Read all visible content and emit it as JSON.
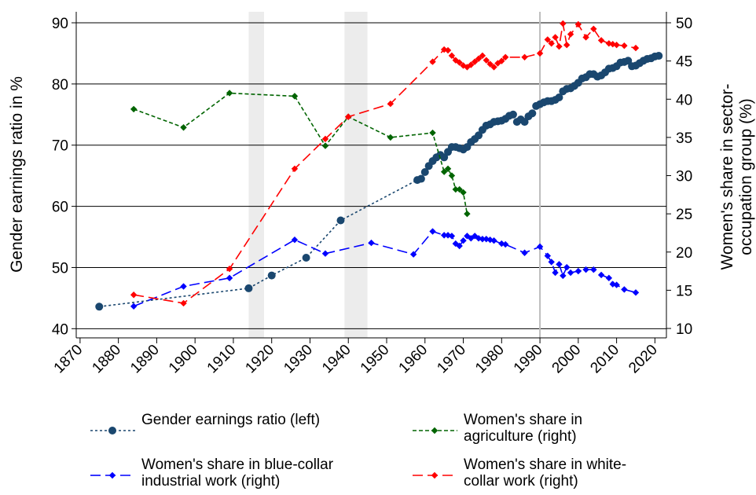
{
  "chart_data": {
    "type": "line",
    "y_label": "Gender earnings ratio in %",
    "y2_label": "Women's share in sector-occupation group (%)",
    "xlim": [
      1869,
      2023
    ],
    "xticks": [
      1870,
      1880,
      1890,
      1900,
      1910,
      1920,
      1930,
      1940,
      1950,
      1960,
      1970,
      1980,
      1990,
      2000,
      2010,
      2020
    ],
    "ylim": [
      38.5,
      91.8
    ],
    "yticks": [
      40,
      50,
      60,
      70,
      80,
      90
    ],
    "y2lim": [
      8.77,
      51.44
    ],
    "y2ticks": [
      10,
      15,
      20,
      25,
      30,
      35,
      40,
      45,
      50
    ],
    "grid": true,
    "shaded_periods": [
      {
        "start": 1914,
        "end": 1918
      },
      {
        "start": 1939,
        "end": 1945
      }
    ],
    "reference_line": 1990,
    "series": [
      {
        "name": "Gender earnings ratio (left)",
        "color": "#1a476f",
        "axis": "y",
        "marker": "circle",
        "dash": "dotted",
        "x": [
          1875,
          1914,
          1920,
          1929,
          1938,
          1958,
          1959,
          1960,
          1961,
          1962,
          1963,
          1964,
          1965,
          1966,
          1967,
          1968,
          1969,
          1970,
          1971,
          1972,
          1973,
          1974,
          1975,
          1976,
          1977,
          1978,
          1979,
          1980,
          1981,
          1982,
          1983,
          1984,
          1985,
          1986,
          1987,
          1988,
          1989,
          1990,
          1991,
          1992,
          1993,
          1994,
          1995,
          1996,
          1997,
          1998,
          1999,
          2000,
          2001,
          2002,
          2003,
          2004,
          2005,
          2006,
          2007,
          2008,
          2009,
          2010,
          2011,
          2012,
          2013,
          2014,
          2015,
          2016,
          2017,
          2018,
          2019,
          2020,
          2021
        ],
        "values": [
          43.6,
          46.6,
          48.7,
          51.6,
          57.7,
          64.3,
          64.5,
          65.6,
          66.6,
          67.4,
          68.0,
          68.4,
          68.0,
          68.9,
          69.7,
          69.7,
          69.5,
          69.3,
          69.7,
          70.5,
          71.0,
          71.6,
          72.5,
          73.2,
          73.4,
          73.8,
          73.9,
          74.0,
          74.3,
          74.8,
          75.0,
          73.8,
          74.2,
          73.8,
          74.7,
          75.2,
          76.4,
          76.7,
          77.0,
          77.2,
          77.2,
          77.4,
          77.8,
          78.8,
          79.2,
          79.3,
          79.7,
          80.2,
          80.9,
          81.1,
          81.6,
          81.6,
          81.2,
          81.4,
          81.9,
          82.5,
          82.6,
          82.9,
          83.5,
          83.6,
          83.8,
          82.9,
          83.0,
          83.4,
          83.8,
          84.1,
          84.2,
          84.5,
          84.6
        ]
      },
      {
        "name": "Women's share in blue-collar industrial work (right)",
        "color": "#0000ff",
        "axis": "y2",
        "marker": "diamond",
        "dash": "long",
        "x": [
          1884,
          1897,
          1909,
          1926,
          1934,
          1946,
          1957,
          1962,
          1965,
          1966,
          1967,
          1968,
          1969,
          1970,
          1971,
          1972,
          1973,
          1974,
          1975,
          1976,
          1977,
          1978,
          1980,
          1981,
          1986,
          1990,
          1992,
          1993,
          1994,
          1995,
          1996,
          1997,
          1998,
          2000,
          2002,
          2004,
          2006,
          2008,
          2009,
          2010,
          2012,
          2015
        ],
        "values": [
          12.9,
          15.5,
          16.6,
          21.6,
          19.8,
          21.2,
          19.7,
          22.7,
          22.2,
          22.2,
          22.1,
          21.1,
          20.8,
          21.5,
          22.1,
          21.8,
          22.1,
          21.8,
          21.7,
          21.7,
          21.6,
          21.5,
          21.1,
          21.0,
          19.9,
          20.7,
          19.5,
          18.7,
          17.3,
          18.4,
          16.9,
          18.0,
          17.3,
          17.5,
          17.7,
          17.7,
          17.0,
          16.6,
          15.8,
          15.7,
          15.1,
          14.7
        ]
      },
      {
        "name": "Women's share in agriculture (right)",
        "color": "#006400",
        "axis": "y2",
        "marker": "diamond",
        "dash": "short",
        "x": [
          1884,
          1897,
          1909,
          1926,
          1934,
          1940,
          1951,
          1962,
          1965,
          1966,
          1967,
          1968,
          1969,
          1970,
          1971
        ],
        "values": [
          38.7,
          36.3,
          40.8,
          40.4,
          33.9,
          37.7,
          35.0,
          35.6,
          30.5,
          30.9,
          30.0,
          28.2,
          28.2,
          27.8,
          25.0
        ]
      },
      {
        "name": "Women's share in white-collar work (right)",
        "color": "#ff0000",
        "axis": "y2",
        "marker": "diamond",
        "dash": "long",
        "x": [
          1884,
          1897,
          1909,
          1926,
          1934,
          1940,
          1951,
          1962,
          1965,
          1966,
          1967,
          1968,
          1969,
          1970,
          1971,
          1972,
          1973,
          1974,
          1975,
          1976,
          1977,
          1978,
          1979,
          1980,
          1981,
          1986,
          1990,
          1992,
          1993,
          1994,
          1995,
          1996,
          1997,
          1998,
          2000,
          2002,
          2004,
          2006,
          2008,
          2009,
          2010,
          2012,
          2015
        ],
        "values": [
          14.4,
          13.3,
          17.8,
          30.9,
          34.8,
          37.7,
          39.4,
          44.9,
          46.5,
          46.4,
          45.7,
          45.1,
          44.8,
          44.4,
          44.2,
          44.5,
          44.9,
          45.3,
          45.7,
          45.1,
          44.6,
          44.2,
          44.7,
          45.0,
          45.5,
          45.5,
          46.0,
          47.8,
          47.3,
          48.1,
          46.9,
          49.9,
          47.1,
          48.5,
          49.8,
          48.1,
          49.2,
          47.7,
          47.3,
          47.2,
          47.1,
          47.0,
          46.7
        ]
      }
    ]
  }
}
